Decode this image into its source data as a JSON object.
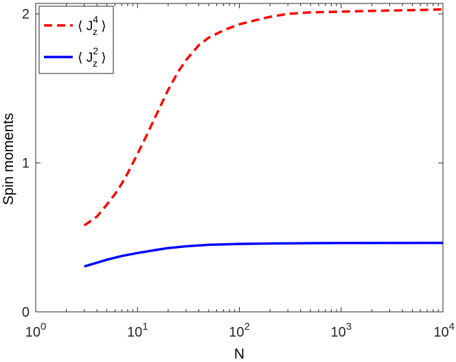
{
  "chart_data": {
    "type": "line",
    "xlabel": "N",
    "ylabel": "Spin moments",
    "xscale": "log",
    "xlim": [
      1,
      10000
    ],
    "ylim": [
      0,
      2.07
    ],
    "x_ticks": [
      {
        "value": 1,
        "base": "10",
        "exp": "0"
      },
      {
        "value": 10,
        "base": "10",
        "exp": "1"
      },
      {
        "value": 100,
        "base": "10",
        "exp": "2"
      },
      {
        "value": 1000,
        "base": "10",
        "exp": "3"
      },
      {
        "value": 10000,
        "base": "10",
        "exp": "4"
      }
    ],
    "y_ticks": [
      {
        "value": 0,
        "label": "0"
      },
      {
        "value": 1,
        "label": "1"
      },
      {
        "value": 2,
        "label": "2"
      }
    ],
    "grid": false,
    "legend_position": "top-left",
    "series": [
      {
        "name": "⟨ J_z^4 ⟩",
        "legend": {
          "open": "⟨",
          "base": "J",
          "sub": "z",
          "sup": "4",
          "close": "⟩"
        },
        "color": "#ff0000",
        "style": "dashed",
        "x": [
          3,
          4,
          5,
          6,
          7,
          8,
          10,
          12,
          15,
          20,
          25,
          30,
          40,
          50,
          70,
          100,
          150,
          200,
          300,
          500,
          1000,
          2000,
          5000,
          10000
        ],
        "y": [
          0.58,
          0.64,
          0.72,
          0.79,
          0.86,
          0.93,
          1.06,
          1.17,
          1.31,
          1.49,
          1.61,
          1.69,
          1.79,
          1.84,
          1.89,
          1.93,
          1.96,
          1.98,
          2.0,
          2.01,
          2.015,
          2.02,
          2.025,
          2.03
        ]
      },
      {
        "name": "⟨ J_z^2 ⟩",
        "legend": {
          "open": "⟨",
          "base": "J",
          "sub": "z",
          "sup": "2",
          "close": "⟩"
        },
        "color": "#0000ff",
        "style": "solid",
        "x": [
          3,
          4,
          5,
          7,
          10,
          15,
          20,
          30,
          50,
          100,
          200,
          500,
          1000,
          10000
        ],
        "y": [
          0.305,
          0.33,
          0.35,
          0.375,
          0.395,
          0.415,
          0.428,
          0.44,
          0.45,
          0.456,
          0.459,
          0.461,
          0.462,
          0.463
        ]
      }
    ]
  }
}
